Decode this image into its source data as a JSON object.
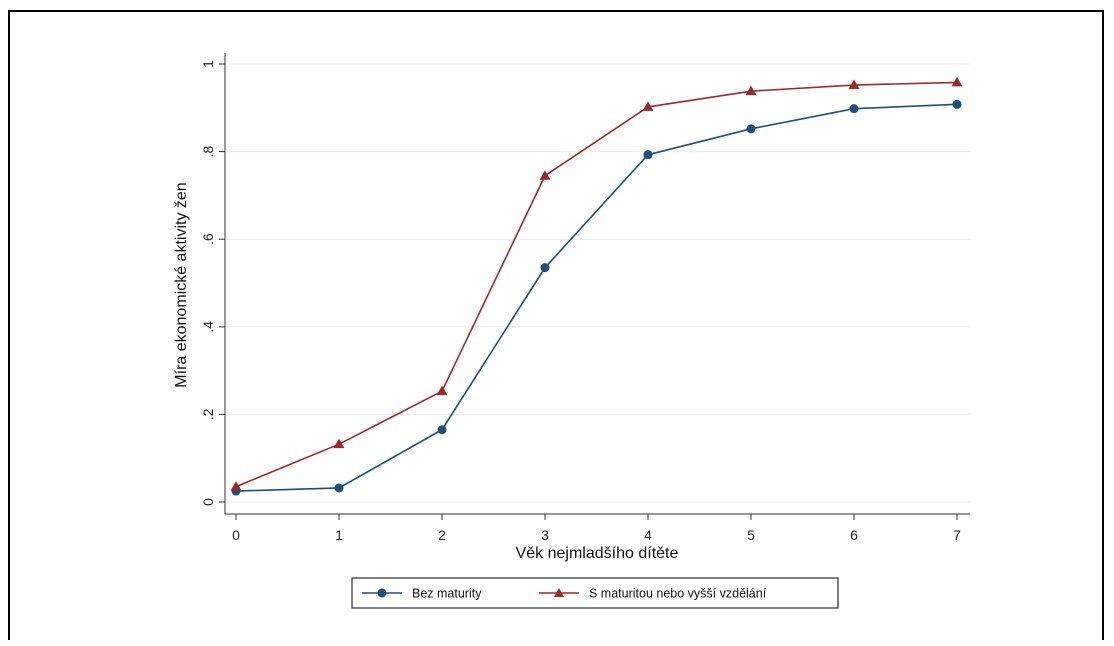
{
  "chart_data": {
    "type": "line",
    "xlabel": "Věk nejmladšího dítěte",
    "ylabel": "Míra ekonomické aktivity žen",
    "x": [
      0,
      1,
      2,
      3,
      4,
      5,
      6,
      7
    ],
    "x_tick_labels": [
      "0",
      "1",
      "2",
      "3",
      "4",
      "5",
      "6",
      "7"
    ],
    "xlim": [
      0,
      7
    ],
    "ylim": [
      0,
      1
    ],
    "y_ticks": [
      0,
      0.2,
      0.4,
      0.6,
      0.8,
      1
    ],
    "y_tick_labels": [
      "0",
      ".2",
      ".4",
      ".6",
      ".8",
      "1"
    ],
    "grid": true,
    "legend_position": "bottom",
    "series": [
      {
        "name": "Bez maturity",
        "marker": "circle",
        "color": "#1f4e79",
        "values": [
          0.025,
          0.032,
          0.165,
          0.535,
          0.793,
          0.852,
          0.898,
          0.908
        ]
      },
      {
        "name": "S maturitou nebo vyšší vzdělání",
        "marker": "triangle",
        "color": "#9b2a2a",
        "values": [
          0.035,
          0.132,
          0.253,
          0.745,
          0.902,
          0.938,
          0.952,
          0.958
        ]
      }
    ]
  }
}
